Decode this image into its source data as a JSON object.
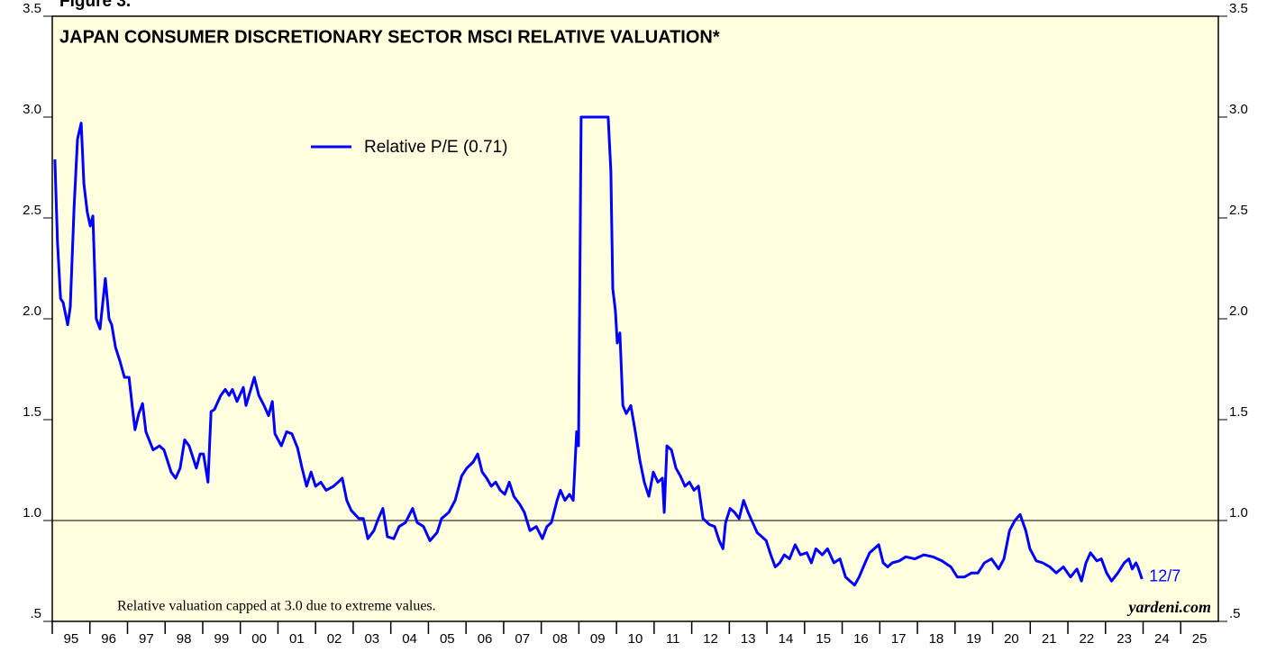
{
  "chart_data": {
    "type": "line",
    "figure_label": "Figure 3.",
    "title": "JAPAN CONSUMER DISCRETIONARY SECTOR MSCI RELATIVE VALUATION*",
    "note": "Relative valuation capped at 3.0 due to extreme values.",
    "source": "yardeni.com",
    "end_label": "12/7",
    "reference_line": 1,
    "xlim": [
      1995,
      2026
    ],
    "ylim": [
      0.5,
      3.5
    ],
    "yticks": [
      {
        "value": 0.5,
        "label": ".5"
      },
      {
        "value": 1,
        "label": "1.0"
      },
      1.5,
      {
        "value": 2,
        "label": "2.0"
      },
      2.5,
      {
        "value": 3,
        "label": "3.0"
      },
      3.5
    ],
    "xticks": [
      {
        "value": 1995,
        "label": "95"
      },
      {
        "value": 1996,
        "label": "96"
      },
      {
        "value": 1997,
        "label": "97"
      },
      {
        "value": 1998,
        "label": "98"
      },
      {
        "value": 1999,
        "label": "99"
      },
      {
        "value": 2000,
        "label": "00"
      },
      {
        "value": 2001,
        "label": "01"
      },
      {
        "value": 2002,
        "label": "02"
      },
      {
        "value": 2003,
        "label": "03"
      },
      {
        "value": 2004,
        "label": "04"
      },
      {
        "value": 2005,
        "label": "05"
      },
      {
        "value": 2006,
        "label": "06"
      },
      {
        "value": 2007,
        "label": "07"
      },
      {
        "value": 2008,
        "label": "08"
      },
      {
        "value": 2009,
        "label": "09"
      },
      {
        "value": 2010,
        "label": "10"
      },
      {
        "value": 2011,
        "label": "11"
      },
      {
        "value": 2012,
        "label": "12"
      },
      {
        "value": 2013,
        "label": "13"
      },
      {
        "value": 2014,
        "label": "14"
      },
      {
        "value": 2015,
        "label": "15"
      },
      {
        "value": 2016,
        "label": "16"
      },
      {
        "value": 2017,
        "label": "17"
      },
      {
        "value": 2018,
        "label": "18"
      },
      {
        "value": 2019,
        "label": "19"
      },
      {
        "value": 2020,
        "label": "20"
      },
      {
        "value": 2021,
        "label": "21"
      },
      {
        "value": 2022,
        "label": "22"
      },
      {
        "value": 2023,
        "label": "23"
      },
      {
        "value": 2024,
        "label": "24"
      },
      {
        "value": 2025,
        "label": "25"
      }
    ],
    "legend": "upper-left",
    "background": "#ffffe0",
    "x": [
      1995.07,
      1995.14,
      1995.22,
      1995.29,
      1995.41,
      1995.48,
      1995.58,
      1995.67,
      1995.77,
      1995.84,
      1995.93,
      1996.01,
      1996.08,
      1996.17,
      1996.27,
      1996.41,
      1996.51,
      1996.58,
      1996.68,
      1996.8,
      1996.92,
      1997.04,
      1997.13,
      1997.2,
      1997.3,
      1997.4,
      1997.49,
      1997.68,
      1997.85,
      1997.97,
      1998.16,
      1998.28,
      1998.4,
      1998.52,
      1998.64,
      1998.83,
      1998.93,
      1999.02,
      1999.14,
      1999.22,
      1999.31,
      1999.48,
      1999.6,
      1999.7,
      1999.79,
      1999.91,
      2000.08,
      2000.15,
      2000.37,
      2000.49,
      2000.63,
      2000.75,
      2000.85,
      2000.92,
      2001.09,
      2001.23,
      2001.37,
      2001.52,
      2001.64,
      2001.76,
      2001.88,
      2002.0,
      2002.14,
      2002.28,
      2002.48,
      2002.6,
      2002.71,
      2002.83,
      2002.95,
      2003.15,
      2003.27,
      2003.39,
      2003.55,
      2003.67,
      2003.79,
      2003.91,
      2004.08,
      2004.22,
      2004.39,
      2004.58,
      2004.7,
      2004.87,
      2005.04,
      2005.23,
      2005.35,
      2005.54,
      2005.71,
      2005.88,
      2006.02,
      2006.19,
      2006.31,
      2006.43,
      2006.55,
      2006.67,
      2006.79,
      2006.91,
      2007.03,
      2007.15,
      2007.27,
      2007.43,
      2007.55,
      2007.7,
      2007.87,
      2008.03,
      2008.15,
      2008.27,
      2008.42,
      2008.51,
      2008.63,
      2008.75,
      2008.85,
      2008.94,
      2008.99,
      2009.06,
      2009.78,
      2009.85,
      2009.9,
      2009.97,
      2010.02,
      2010.09,
      2010.17,
      2010.26,
      2010.38,
      2010.5,
      2010.62,
      2010.74,
      2010.86,
      2010.98,
      2011.1,
      2011.22,
      2011.27,
      2011.34,
      2011.46,
      2011.58,
      2011.7,
      2011.82,
      2011.94,
      2012.06,
      2012.18,
      2012.3,
      2012.47,
      2012.61,
      2012.73,
      2012.83,
      2012.9,
      2013.02,
      2013.14,
      2013.26,
      2013.38,
      2013.5,
      2013.62,
      2013.74,
      2013.86,
      2013.98,
      2014.1,
      2014.22,
      2014.34,
      2014.46,
      2014.6,
      2014.75,
      2014.89,
      2015.06,
      2015.18,
      2015.3,
      2015.47,
      2015.61,
      2015.78,
      2015.94,
      2016.09,
      2016.21,
      2016.33,
      2016.45,
      2016.61,
      2016.73,
      2016.85,
      2016.97,
      2017.09,
      2017.21,
      2017.33,
      2017.52,
      2017.69,
      2017.93,
      2018.17,
      2018.41,
      2018.65,
      2018.89,
      2019.06,
      2019.25,
      2019.44,
      2019.61,
      2019.78,
      2019.97,
      2020.16,
      2020.3,
      2020.45,
      2020.59,
      2020.73,
      2020.88,
      2020.99,
      2021.16,
      2021.33,
      2021.52,
      2021.69,
      2021.88,
      2022.07,
      2022.24,
      2022.36,
      2022.48,
      2022.6,
      2022.77,
      2022.89,
      2023.03,
      2023.16,
      2023.33,
      2023.5,
      2023.62,
      2023.71,
      2023.81,
      2023.86,
      2023.97
    ],
    "series": [
      {
        "name": "Relative P/E (0.71)",
        "color": "#0000ff",
        "values": [
          2.79,
          2.38,
          2.1,
          2.08,
          1.97,
          2.06,
          2.55,
          2.89,
          2.97,
          2.67,
          2.53,
          2.46,
          2.51,
          2.0,
          1.95,
          2.2,
          2.0,
          1.97,
          1.86,
          1.79,
          1.71,
          1.71,
          1.56,
          1.45,
          1.53,
          1.58,
          1.44,
          1.35,
          1.37,
          1.35,
          1.24,
          1.21,
          1.26,
          1.4,
          1.37,
          1.26,
          1.33,
          1.33,
          1.19,
          1.54,
          1.55,
          1.62,
          1.65,
          1.62,
          1.65,
          1.59,
          1.66,
          1.57,
          1.71,
          1.62,
          1.57,
          1.52,
          1.59,
          1.43,
          1.37,
          1.44,
          1.43,
          1.36,
          1.26,
          1.17,
          1.24,
          1.17,
          1.19,
          1.15,
          1.17,
          1.19,
          1.21,
          1.1,
          1.05,
          1.01,
          1.01,
          0.91,
          0.95,
          1.01,
          1.06,
          0.92,
          0.91,
          0.97,
          0.99,
          1.06,
          0.99,
          0.97,
          0.9,
          0.94,
          1.01,
          1.04,
          1.1,
          1.22,
          1.26,
          1.29,
          1.33,
          1.24,
          1.21,
          1.17,
          1.19,
          1.15,
          1.13,
          1.19,
          1.12,
          1.08,
          1.04,
          0.95,
          0.97,
          0.91,
          0.97,
          0.99,
          1.1,
          1.15,
          1.1,
          1.13,
          1.1,
          1.44,
          1.37,
          3.0,
          3.0,
          2.73,
          2.15,
          2.04,
          1.88,
          1.93,
          1.57,
          1.53,
          1.57,
          1.44,
          1.3,
          1.19,
          1.12,
          1.24,
          1.19,
          1.21,
          1.04,
          1.37,
          1.35,
          1.26,
          1.22,
          1.17,
          1.19,
          1.15,
          1.17,
          1.01,
          0.98,
          0.97,
          0.9,
          0.86,
          0.99,
          1.06,
          1.04,
          1.01,
          1.1,
          1.04,
          0.99,
          0.94,
          0.92,
          0.9,
          0.83,
          0.77,
          0.79,
          0.83,
          0.81,
          0.88,
          0.83,
          0.84,
          0.79,
          0.86,
          0.83,
          0.86,
          0.79,
          0.81,
          0.72,
          0.7,
          0.68,
          0.72,
          0.79,
          0.84,
          0.86,
          0.88,
          0.79,
          0.77,
          0.79,
          0.8,
          0.82,
          0.81,
          0.83,
          0.82,
          0.8,
          0.77,
          0.72,
          0.72,
          0.74,
          0.74,
          0.79,
          0.81,
          0.76,
          0.81,
          0.95,
          1.0,
          1.03,
          0.95,
          0.86,
          0.8,
          0.79,
          0.77,
          0.74,
          0.77,
          0.72,
          0.76,
          0.7,
          0.79,
          0.84,
          0.8,
          0.81,
          0.74,
          0.7,
          0.74,
          0.79,
          0.81,
          0.76,
          0.79,
          0.77,
          0.71
        ]
      }
    ]
  }
}
